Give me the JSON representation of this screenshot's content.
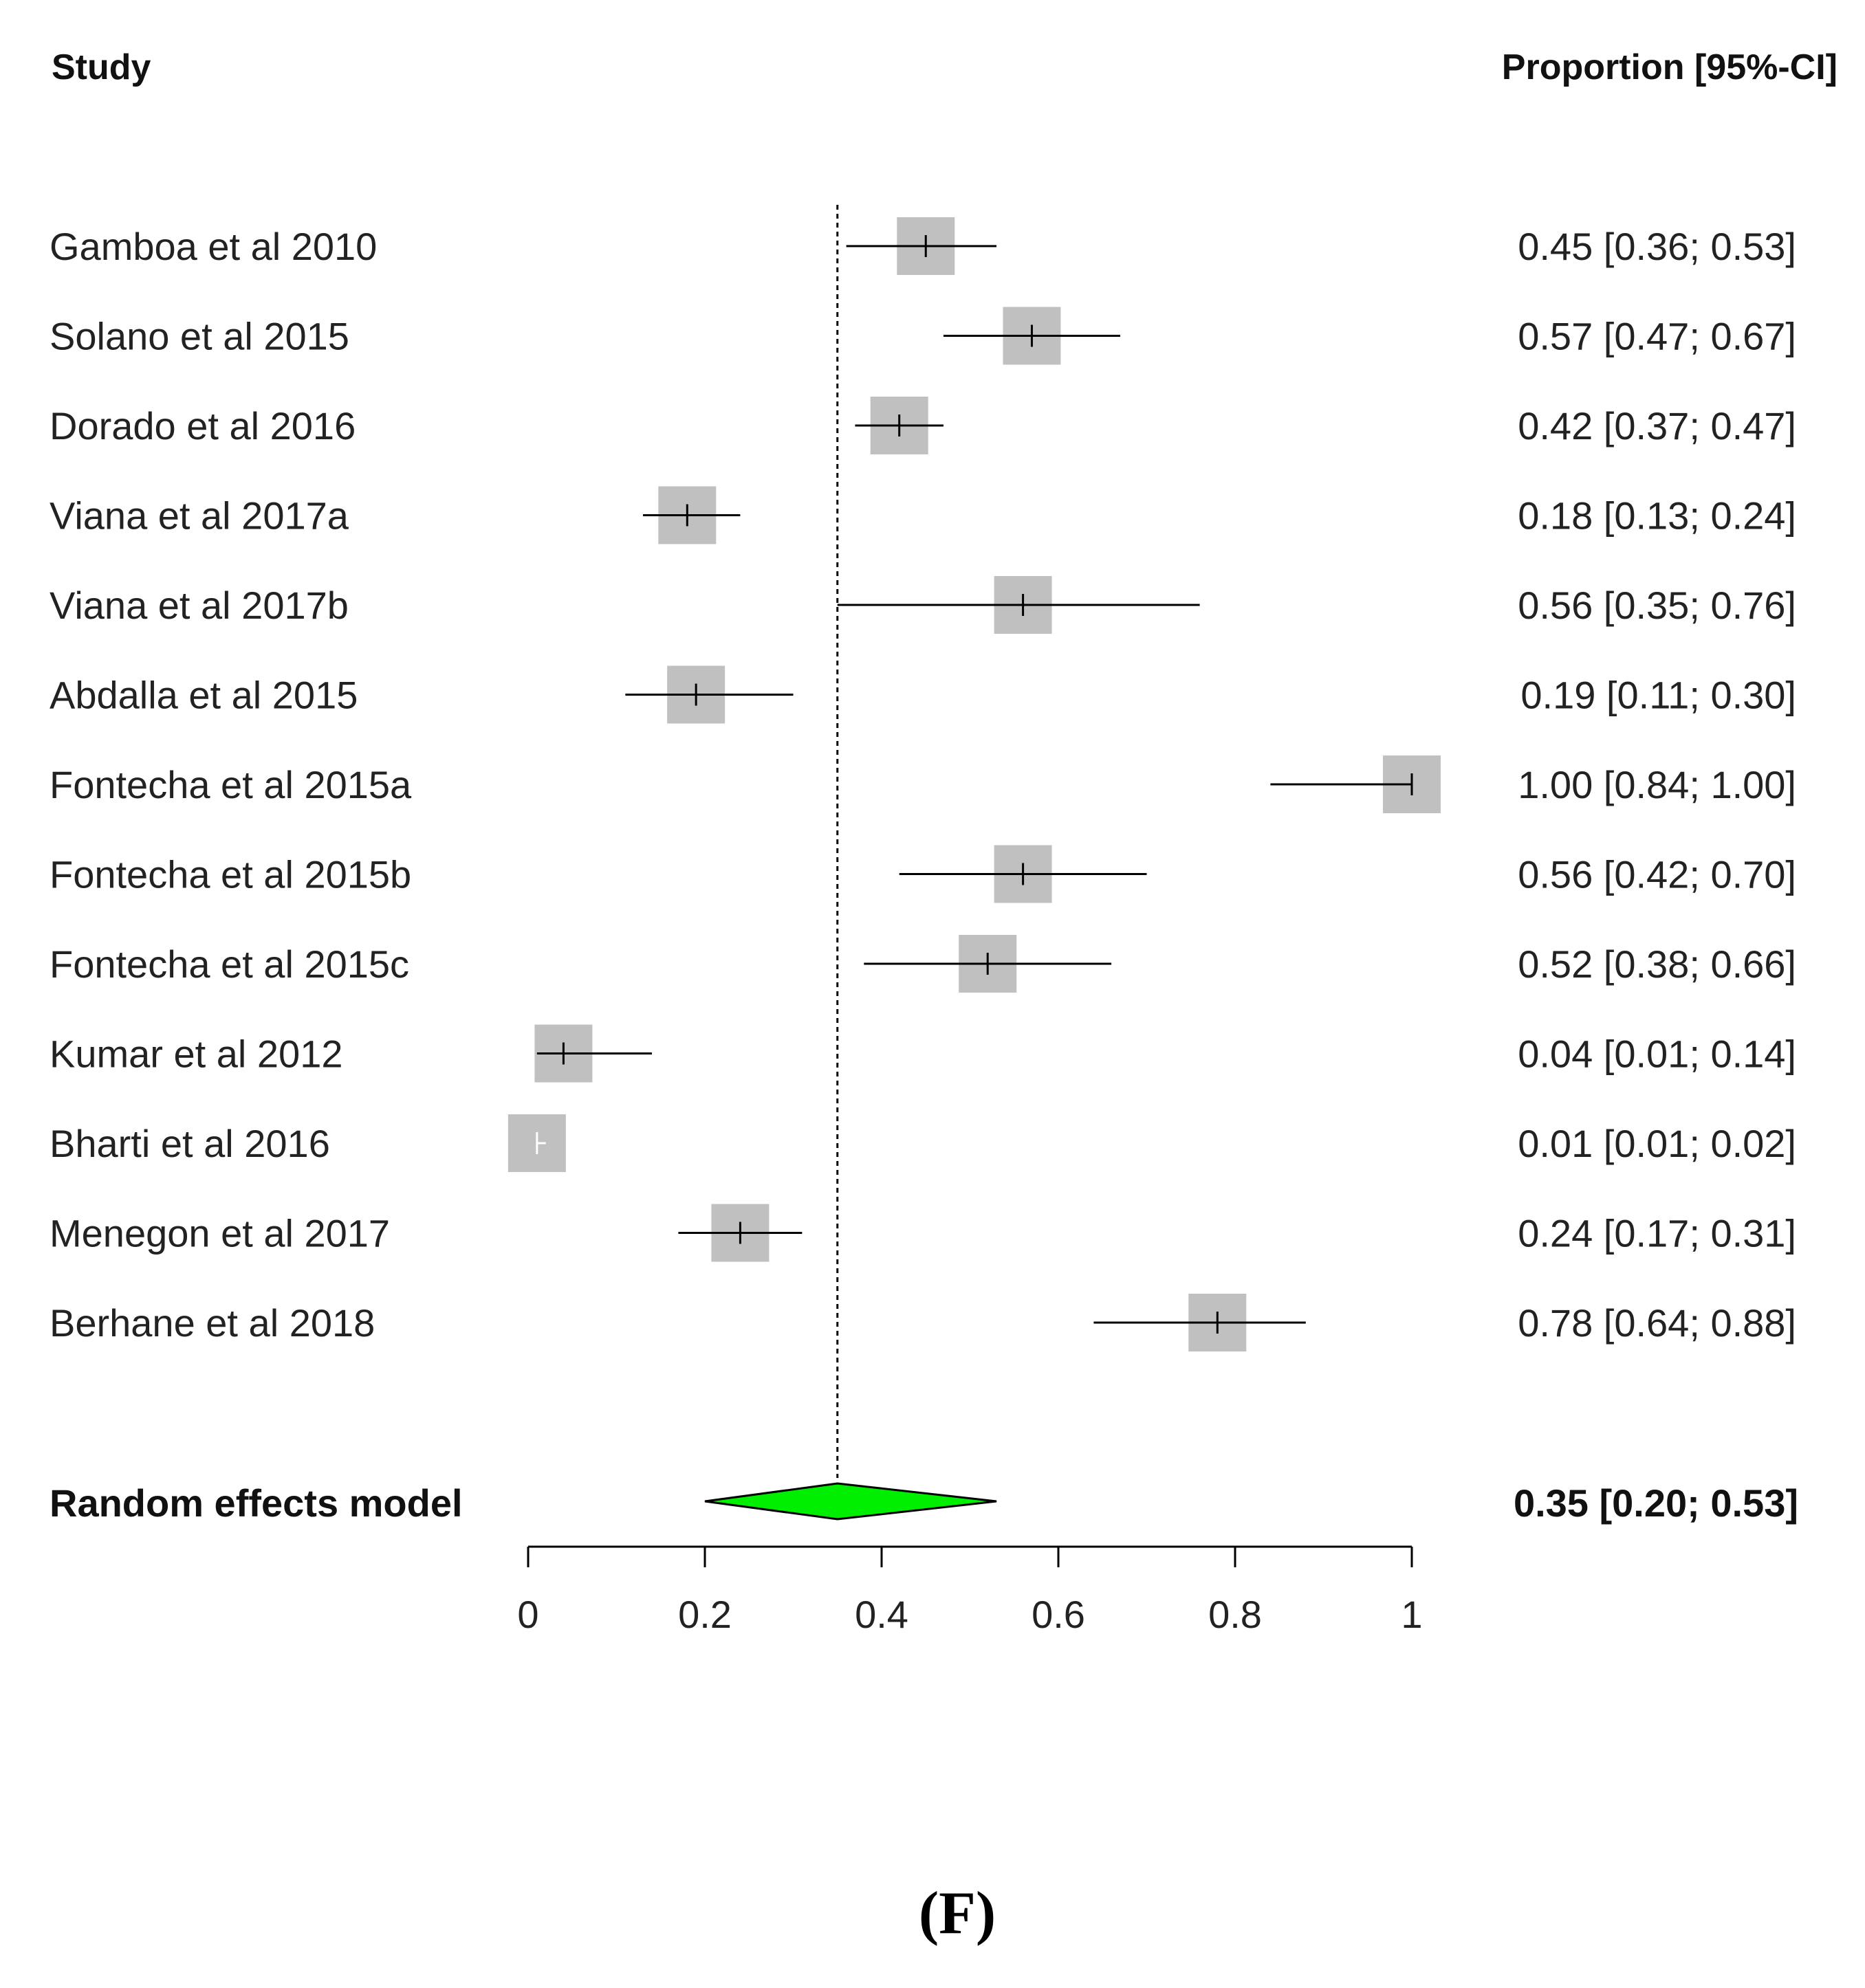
{
  "chart_data": {
    "type": "forest",
    "headers": {
      "study": "Study",
      "effect": "Proportion [95%-CI]"
    },
    "studies": [
      {
        "name": "Gamboa et al 2010",
        "est": 0.45,
        "lo": 0.36,
        "hi": 0.53,
        "label": "0.45 [0.36; 0.53]"
      },
      {
        "name": "Solano et al 2015",
        "est": 0.57,
        "lo": 0.47,
        "hi": 0.67,
        "label": "0.57 [0.47; 0.67]"
      },
      {
        "name": "Dorado et al 2016",
        "est": 0.42,
        "lo": 0.37,
        "hi": 0.47,
        "label": "0.42 [0.37; 0.47]"
      },
      {
        "name": "Viana et al 2017a",
        "est": 0.18,
        "lo": 0.13,
        "hi": 0.24,
        "label": "0.18 [0.13; 0.24]"
      },
      {
        "name": "Viana et al 2017b",
        "est": 0.56,
        "lo": 0.35,
        "hi": 0.76,
        "label": "0.56 [0.35; 0.76]"
      },
      {
        "name": "Abdalla et al 2015",
        "est": 0.19,
        "lo": 0.11,
        "hi": 0.3,
        "label": "0.19 [0.11; 0.30]"
      },
      {
        "name": "Fontecha et al 2015a",
        "est": 1.0,
        "lo": 0.84,
        "hi": 1.0,
        "label": "1.00 [0.84; 1.00]"
      },
      {
        "name": "Fontecha et al 2015b",
        "est": 0.56,
        "lo": 0.42,
        "hi": 0.7,
        "label": "0.56 [0.42; 0.70]"
      },
      {
        "name": "Fontecha et al 2015c",
        "est": 0.52,
        "lo": 0.38,
        "hi": 0.66,
        "label": "0.52 [0.38; 0.66]"
      },
      {
        "name": "Kumar et al 2012",
        "est": 0.04,
        "lo": 0.01,
        "hi": 0.14,
        "label": "0.04 [0.01; 0.14]"
      },
      {
        "name": "Bharti et al 2016",
        "est": 0.01,
        "lo": 0.01,
        "hi": 0.02,
        "label": "0.01 [0.01; 0.02]"
      },
      {
        "name": "Menegon et al 2017",
        "est": 0.24,
        "lo": 0.17,
        "hi": 0.31,
        "label": "0.24 [0.17; 0.31]"
      },
      {
        "name": "Berhane et al 2018",
        "est": 0.78,
        "lo": 0.64,
        "hi": 0.88,
        "label": "0.78 [0.64; 0.88]"
      }
    ],
    "summary": {
      "name": "Random effects model",
      "est": 0.35,
      "lo": 0.2,
      "hi": 0.53,
      "label": "0.35 [0.20; 0.53]"
    },
    "xlim": [
      0,
      1
    ],
    "ticks": [
      0,
      0.2,
      0.4,
      0.6,
      0.8,
      1
    ],
    "tick_labels": [
      "0",
      "0.2",
      "0.4",
      "0.6",
      "0.8",
      "1"
    ],
    "reference_line": 0.35,
    "box_color": "#c0c0c0",
    "diamond_color": "#00ee00"
  },
  "panel_label": "(F)"
}
